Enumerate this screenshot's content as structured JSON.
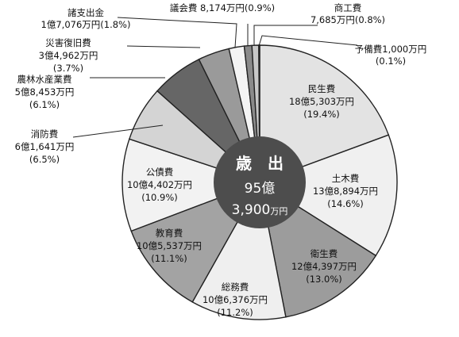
{
  "chart_data": {
    "type": "pie",
    "title": "歳　出",
    "total_amount": "95億",
    "total_amount_line2": "3,900",
    "total_unit": "万円",
    "slices": [
      {
        "name": "民生費",
        "amount": "18億5,303万円",
        "percent": "(19.4%)",
        "value": 19.4,
        "color": "#e3e3e3"
      },
      {
        "name": "土木費",
        "amount": "13億8,894万円",
        "percent": "(14.6%)",
        "value": 14.6,
        "color": "#f0f0f0"
      },
      {
        "name": "衛生費",
        "amount": "12億4,397万円",
        "percent": "(13.0%)",
        "value": 13.0,
        "color": "#9c9c9c"
      },
      {
        "name": "総務費",
        "amount": "10億6,376万円",
        "percent": "(11.2%)",
        "value": 11.2,
        "color": "#efefef"
      },
      {
        "name": "教育費",
        "amount": "10億5,537万円",
        "percent": "(11.1%)",
        "value": 11.1,
        "color": "#a3a3a3"
      },
      {
        "name": "公債費",
        "amount": "10億4,402万円",
        "percent": "(10.9%)",
        "value": 10.9,
        "color": "#f2f2f2"
      },
      {
        "name": "消防費",
        "amount": "6億1,641万円",
        "percent": "(6.5%)",
        "value": 6.5,
        "color": "#d4d4d4"
      },
      {
        "name": "農林水産業費",
        "amount": "5億8,453万円",
        "percent": "(6.1%)",
        "value": 6.1,
        "color": "#666666"
      },
      {
        "name": "災害復旧費",
        "amount": "3億4,962万円",
        "percent": "(3.7%)",
        "value": 3.7,
        "color": "#9a9a9a"
      },
      {
        "name": "諸支出金",
        "amount": "1億7,076万円",
        "percent": "(1.8%)",
        "value": 1.8,
        "color": "#f4f4f4"
      },
      {
        "name": "議会費",
        "amount": "8,174万円",
        "percent": "(0.9%)",
        "value": 0.9,
        "color": "#8a8a8a"
      },
      {
        "name": "商工費",
        "amount": "7,685万円",
        "percent": "(0.8%)",
        "value": 0.8,
        "color": "#c8c8c8"
      },
      {
        "name": "予備費",
        "amount": "1,000万円",
        "percent": "(0.1%)",
        "value": 0.1,
        "color": "#333333"
      }
    ]
  }
}
